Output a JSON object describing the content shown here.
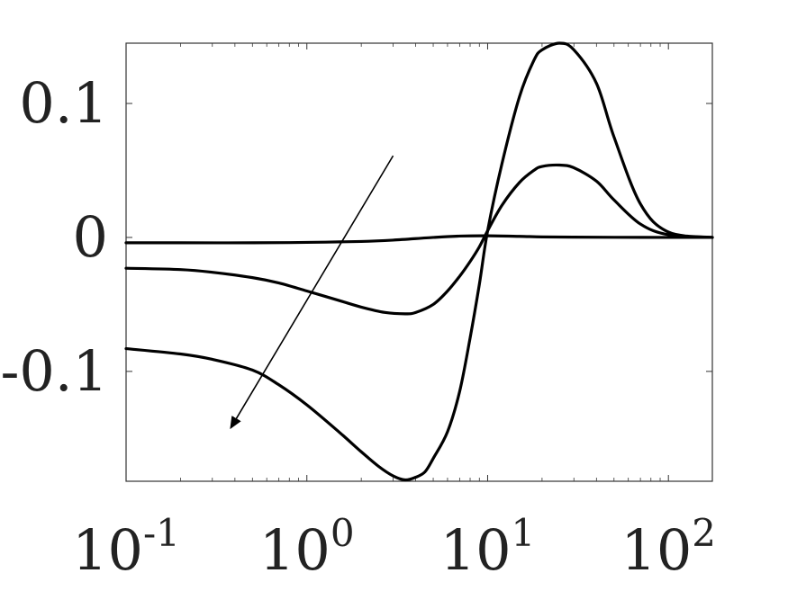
{
  "chart_data": {
    "type": "line",
    "title": "",
    "xlabel": "",
    "ylabel": "",
    "xscale": "log",
    "xlim": [
      0.1,
      175
    ],
    "ylim": [
      -0.182,
      0.145
    ],
    "grid": false,
    "legend": "none",
    "x_ticks": [
      {
        "value": 0.1,
        "base": "10",
        "exp": "-1"
      },
      {
        "value": 1,
        "base": "10",
        "exp": "0"
      },
      {
        "value": 10,
        "base": "10",
        "exp": "1"
      },
      {
        "value": 100,
        "base": "10",
        "exp": "2"
      }
    ],
    "y_ticks": [
      {
        "value": 0.1,
        "label": "0.1"
      },
      {
        "value": 0,
        "label": "0"
      },
      {
        "value": -0.1,
        "label": "-0.1"
      }
    ],
    "series": [
      {
        "x": [
          0.1,
          0.2,
          0.5,
          1,
          2,
          3,
          5,
          7,
          10,
          15,
          20,
          30,
          50,
          100,
          175
        ],
        "y": [
          -0.004,
          -0.004,
          -0.004,
          -0.0037,
          -0.003,
          -0.002,
          0.0,
          0.001,
          0.0012,
          0.0008,
          0.0004,
          0.0002,
          0.0001,
          0.0,
          0.0
        ]
      },
      {
        "x": [
          0.1,
          0.2,
          0.3,
          0.5,
          0.7,
          1,
          1.5,
          2,
          2.7,
          3.5,
          4,
          5,
          6,
          7,
          8,
          9,
          10,
          12,
          15,
          18,
          20,
          25,
          30,
          40,
          50,
          70,
          100,
          175
        ],
        "y": [
          -0.023,
          -0.024,
          -0.026,
          -0.03,
          -0.034,
          -0.04,
          -0.047,
          -0.052,
          -0.056,
          -0.057,
          -0.056,
          -0.05,
          -0.04,
          -0.029,
          -0.018,
          -0.007,
          0.005,
          0.024,
          0.041,
          0.05,
          0.053,
          0.054,
          0.052,
          0.042,
          0.028,
          0.01,
          0.002,
          0.0
        ]
      },
      {
        "x": [
          0.1,
          0.2,
          0.3,
          0.5,
          0.7,
          1,
          1.5,
          2,
          2.5,
          3,
          3.5,
          4,
          4.5,
          5,
          6,
          7,
          8,
          9,
          10,
          12,
          15,
          18,
          20,
          25,
          30,
          40,
          50,
          70,
          100,
          175
        ],
        "y": [
          -0.083,
          -0.087,
          -0.091,
          -0.099,
          -0.11,
          -0.125,
          -0.145,
          -0.16,
          -0.171,
          -0.178,
          -0.181,
          -0.179,
          -0.175,
          -0.165,
          -0.145,
          -0.115,
          -0.075,
          -0.035,
          0.005,
          0.055,
          0.105,
          0.132,
          0.14,
          0.145,
          0.14,
          0.115,
          0.075,
          0.025,
          0.004,
          0.0
        ]
      }
    ],
    "annotations": [
      {
        "type": "arrow",
        "from": {
          "x": 3.0,
          "y": 0.061
        },
        "to": {
          "x": 0.38,
          "y": -0.142
        }
      }
    ]
  }
}
